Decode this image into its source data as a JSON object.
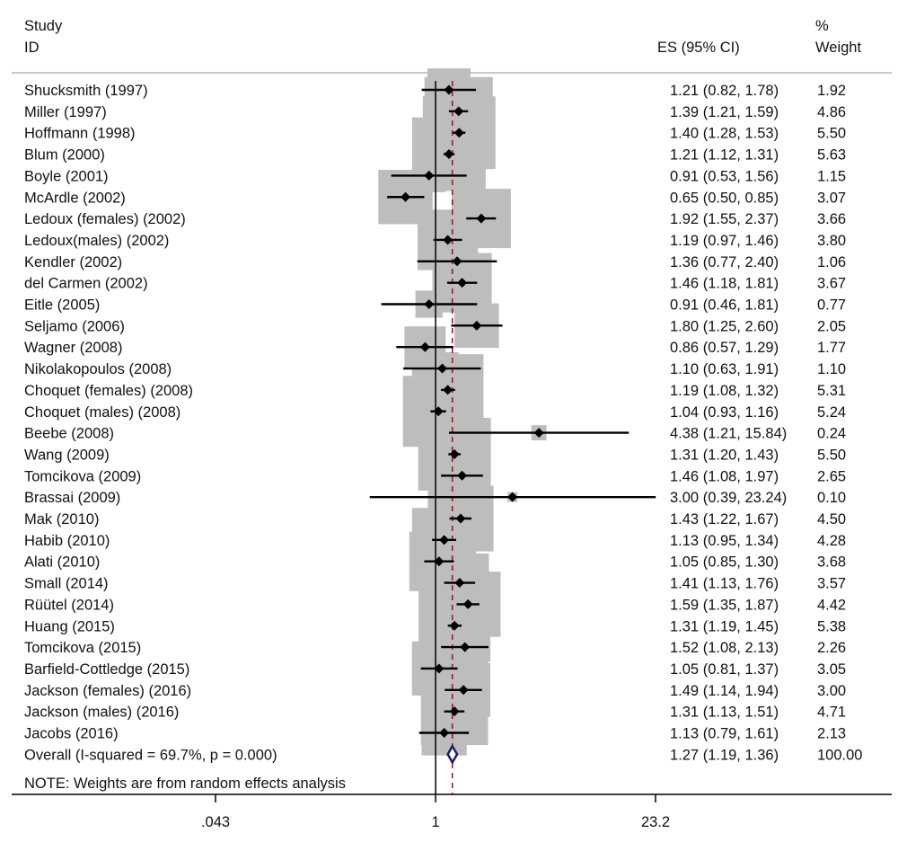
{
  "header": {
    "study_line1": "Study",
    "study_line2": "ID",
    "es_header": "ES (95% CI)",
    "weight_line1": "%",
    "weight_line2": "Weight"
  },
  "footer": {
    "note": "NOTE: Weights are from random effects analysis"
  },
  "chart_data": {
    "type": "forest",
    "x_scale": "log",
    "x_ticks": [
      {
        "value": 0.043,
        "label": ".043"
      },
      {
        "value": 1,
        "label": "1"
      },
      {
        "value": 23.2,
        "label": "23.2"
      }
    ],
    "null_line": 1,
    "overall_line": 1.27,
    "colors": {
      "box": "#bdbdbd",
      "point": "#000000",
      "ci": "#000000",
      "diamond": "#1a1a6e",
      "overall_line": "#8b1a1a",
      "rule": "#c8c8c8"
    },
    "studies": [
      {
        "label": "Shucksmith (1997)",
        "es": 1.21,
        "lo": 0.82,
        "hi": 1.78,
        "es_ci": "1.21 (0.82, 1.78)",
        "weight": "1.92"
      },
      {
        "label": "Miller (1997)",
        "es": 1.39,
        "lo": 1.21,
        "hi": 1.59,
        "es_ci": "1.39 (1.21, 1.59)",
        "weight": "4.86"
      },
      {
        "label": "Hoffmann (1998)",
        "es": 1.4,
        "lo": 1.28,
        "hi": 1.53,
        "es_ci": "1.40 (1.28, 1.53)",
        "weight": "5.50"
      },
      {
        "label": "Blum (2000)",
        "es": 1.21,
        "lo": 1.12,
        "hi": 1.31,
        "es_ci": "1.21 (1.12, 1.31)",
        "weight": "5.63"
      },
      {
        "label": "Boyle (2001)",
        "es": 0.91,
        "lo": 0.53,
        "hi": 1.56,
        "es_ci": "0.91 (0.53, 1.56)",
        "weight": "1.15"
      },
      {
        "label": "McArdle (2002)",
        "es": 0.65,
        "lo": 0.5,
        "hi": 0.85,
        "es_ci": "0.65 (0.50, 0.85)",
        "weight": "3.07"
      },
      {
        "label": "Ledoux (females) (2002)",
        "es": 1.92,
        "lo": 1.55,
        "hi": 2.37,
        "es_ci": "1.92 (1.55, 2.37)",
        "weight": "3.66"
      },
      {
        "label": "Ledoux(males) (2002)",
        "es": 1.19,
        "lo": 0.97,
        "hi": 1.46,
        "es_ci": "1.19 (0.97, 1.46)",
        "weight": "3.80"
      },
      {
        "label": "Kendler (2002)",
        "es": 1.36,
        "lo": 0.77,
        "hi": 2.4,
        "es_ci": "1.36 (0.77, 2.40)",
        "weight": "1.06"
      },
      {
        "label": "del Carmen (2002)",
        "es": 1.46,
        "lo": 1.18,
        "hi": 1.81,
        "es_ci": "1.46 (1.18, 1.81)",
        "weight": "3.67"
      },
      {
        "label": "Eitle (2005)",
        "es": 0.91,
        "lo": 0.46,
        "hi": 1.81,
        "es_ci": "0.91 (0.46, 1.81)",
        "weight": "0.77"
      },
      {
        "label": "Seljamo (2006)",
        "es": 1.8,
        "lo": 1.25,
        "hi": 2.6,
        "es_ci": "1.80 (1.25, 2.60)",
        "weight": "2.05"
      },
      {
        "label": "Wagner (2008)",
        "es": 0.86,
        "lo": 0.57,
        "hi": 1.29,
        "es_ci": "0.86 (0.57, 1.29)",
        "weight": "1.77"
      },
      {
        "label": "Nikolakopoulos (2008)",
        "es": 1.1,
        "lo": 0.63,
        "hi": 1.91,
        "es_ci": "1.10 (0.63, 1.91)",
        "weight": "1.10"
      },
      {
        "label": "Choquet (females) (2008)",
        "es": 1.19,
        "lo": 1.08,
        "hi": 1.32,
        "es_ci": "1.19 (1.08, 1.32)",
        "weight": "5.31"
      },
      {
        "label": "Choquet (males) (2008)",
        "es": 1.04,
        "lo": 0.93,
        "hi": 1.16,
        "es_ci": "1.04 (0.93, 1.16)",
        "weight": "5.24"
      },
      {
        "label": "Beebe (2008)",
        "es": 4.38,
        "lo": 1.21,
        "hi": 15.84,
        "es_ci": "4.38 (1.21, 15.84)",
        "weight": "0.24"
      },
      {
        "label": "Wang (2009)",
        "es": 1.31,
        "lo": 1.2,
        "hi": 1.43,
        "es_ci": "1.31 (1.20, 1.43)",
        "weight": "5.50"
      },
      {
        "label": "Tomcikova (2009)",
        "es": 1.46,
        "lo": 1.08,
        "hi": 1.97,
        "es_ci": "1.46 (1.08, 1.97)",
        "weight": "2.65"
      },
      {
        "label": "Brassai (2009)",
        "es": 3.0,
        "lo": 0.39,
        "hi": 23.24,
        "es_ci": "3.00 (0.39, 23.24)",
        "weight": "0.10"
      },
      {
        "label": "Mak (2010)",
        "es": 1.43,
        "lo": 1.22,
        "hi": 1.67,
        "es_ci": "1.43 (1.22, 1.67)",
        "weight": "4.50"
      },
      {
        "label": "Habib (2010)",
        "es": 1.13,
        "lo": 0.95,
        "hi": 1.34,
        "es_ci": "1.13 (0.95, 1.34)",
        "weight": "4.28"
      },
      {
        "label": "Alati (2010)",
        "es": 1.05,
        "lo": 0.85,
        "hi": 1.3,
        "es_ci": "1.05 (0.85, 1.30)",
        "weight": "3.68"
      },
      {
        "label": "Small (2014)",
        "es": 1.41,
        "lo": 1.13,
        "hi": 1.76,
        "es_ci": "1.41 (1.13, 1.76)",
        "weight": "3.57"
      },
      {
        "label": "Rüütel (2014)",
        "es": 1.59,
        "lo": 1.35,
        "hi": 1.87,
        "es_ci": "1.59 (1.35, 1.87)",
        "weight": "4.42"
      },
      {
        "label": "Huang (2015)",
        "es": 1.31,
        "lo": 1.19,
        "hi": 1.45,
        "es_ci": "1.31 (1.19, 1.45)",
        "weight": "5.38"
      },
      {
        "label": "Tomcikova (2015)",
        "es": 1.52,
        "lo": 1.08,
        "hi": 2.13,
        "es_ci": "1.52 (1.08, 2.13)",
        "weight": "2.26"
      },
      {
        "label": "Barfield-Cottledge (2015)",
        "es": 1.05,
        "lo": 0.81,
        "hi": 1.37,
        "es_ci": "1.05 (0.81, 1.37)",
        "weight": "3.05"
      },
      {
        "label": "Jackson (females) (2016)",
        "es": 1.49,
        "lo": 1.14,
        "hi": 1.94,
        "es_ci": "1.49 (1.14, 1.94)",
        "weight": "3.00"
      },
      {
        "label": "Jackson (males) (2016)",
        "es": 1.31,
        "lo": 1.13,
        "hi": 1.51,
        "es_ci": "1.31 (1.13, 1.51)",
        "weight": "4.71"
      },
      {
        "label": "Jacobs (2016)",
        "es": 1.13,
        "lo": 0.79,
        "hi": 1.61,
        "es_ci": "1.13 (0.79, 1.61)",
        "weight": "2.13"
      }
    ],
    "overall": {
      "label": "Overall  (I-squared = 69.7%, p = 0.000)",
      "es": 1.27,
      "lo": 1.19,
      "hi": 1.36,
      "es_ci": "1.27 (1.19, 1.36)",
      "weight": "100.00"
    }
  }
}
